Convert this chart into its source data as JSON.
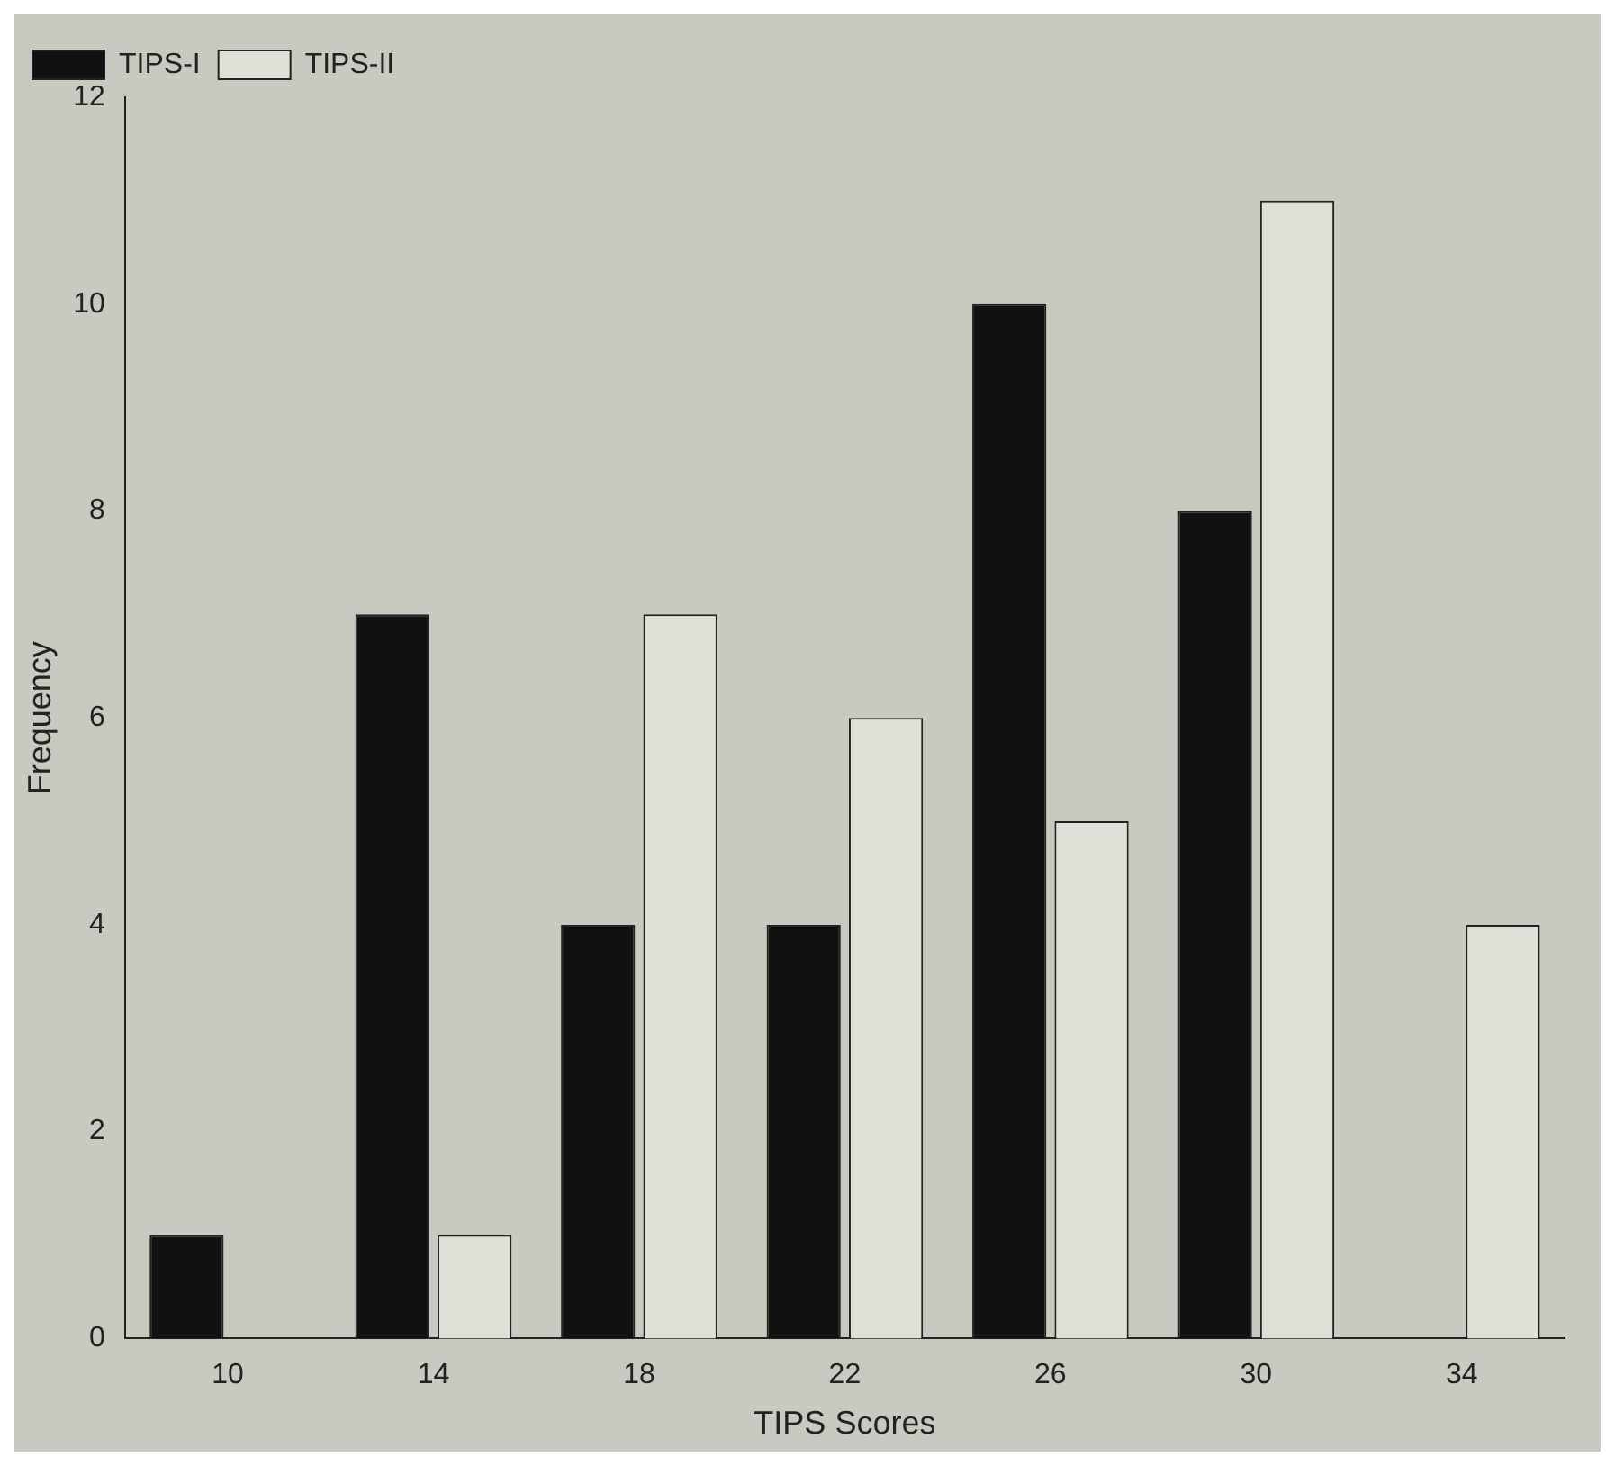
{
  "chart_data": {
    "type": "bar",
    "xlabel": "TIPS Scores",
    "ylabel": "Frequency",
    "categories": [
      "10",
      "14",
      "18",
      "22",
      "26",
      "30",
      "34"
    ],
    "series": [
      {
        "name": "TIPS-I",
        "color": "#111111",
        "values": [
          1,
          7,
          4,
          4,
          10,
          8,
          0
        ]
      },
      {
        "name": "TIPS-II",
        "color": "#e0e0d8",
        "values": [
          0,
          1,
          7,
          6,
          5,
          11,
          4
        ]
      }
    ],
    "ylim": [
      0,
      12
    ],
    "yticks": [
      0,
      2,
      4,
      6,
      8,
      10,
      12
    ],
    "grid": false,
    "legend": "top left"
  }
}
